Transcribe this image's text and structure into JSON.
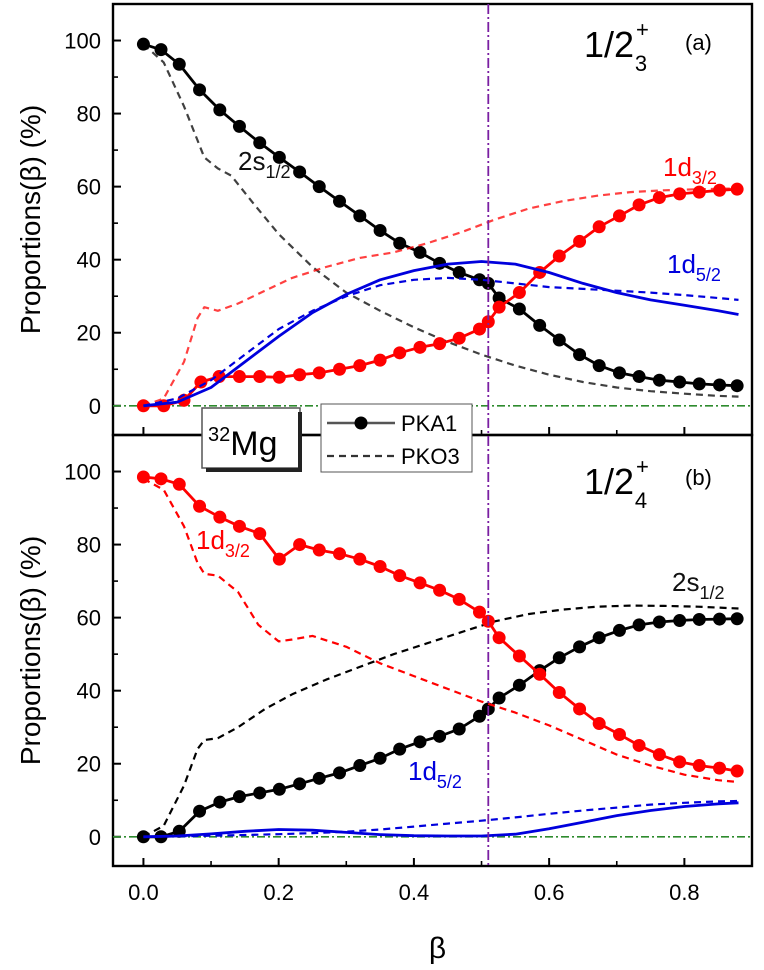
{
  "chart_data": {
    "type": "line",
    "x_axis": {
      "label": "β",
      "range": [
        -0.045,
        0.9
      ],
      "ticks": [
        "0.0",
        "0.2",
        "0.4",
        "0.6",
        "0.8"
      ]
    },
    "y_axis": {
      "label": "Proportions(β) (%)",
      "ticks": [
        "0",
        "20",
        "40",
        "60",
        "80",
        "100"
      ]
    },
    "legend": {
      "location": "center, between panels",
      "entries": [
        {
          "label": "PKA1",
          "style": "solid line with filled circles"
        },
        {
          "label": "PKO3",
          "style": "dashed line"
        }
      ]
    },
    "nucleus_label": {
      "mass": "32",
      "element": "Mg"
    },
    "reference_lines": {
      "vertical_beta": 0.51,
      "horizontal_y": 0
    },
    "colors": {
      "s12": "#000000",
      "d32": "#ff0000",
      "d52": "#0000dd",
      "vline": "#7a1fa2",
      "hline": "#2e8b2e"
    },
    "panels": [
      {
        "tag": "(a)",
        "state_main": "1/2",
        "state_sup": "+",
        "state_sub": "3",
        "ylim": [
          -8,
          110
        ],
        "series": [
          {
            "name": "2s1/2 PKA1",
            "key": "s12",
            "style": "solid-marker",
            "x": [
              0,
              0.026,
              0.053,
              0.083,
              0.113,
              0.142,
              0.172,
              0.201,
              0.231,
              0.26,
              0.29,
              0.32,
              0.35,
              0.379,
              0.409,
              0.438,
              0.467,
              0.497,
              0.51,
              0.526,
              0.556,
              0.586,
              0.615,
              0.645,
              0.674,
              0.704,
              0.733,
              0.763,
              0.793,
              0.822,
              0.852,
              0.878
            ],
            "y": [
              99,
              97.5,
              93.5,
              86.5,
              81,
              76.5,
              72,
              68,
              64,
              60,
              56,
              52,
              48,
              44.5,
              42,
              39,
              36.5,
              34.5,
              33.5,
              29.5,
              26.5,
              22,
              18,
              14,
              11,
              9,
              8,
              7,
              6.5,
              6,
              5.7,
              5.5
            ]
          },
          {
            "name": "2s1/2 PKO3",
            "key": "s12",
            "style": "dashed",
            "x": [
              0,
              0.03,
              0.06,
              0.09,
              0.11,
              0.13,
              0.16,
              0.2,
              0.25,
              0.3,
              0.35,
              0.4,
              0.45,
              0.5,
              0.55,
              0.6,
              0.65,
              0.7,
              0.75,
              0.8,
              0.85,
              0.88
            ],
            "y": [
              99,
              94,
              82,
              68,
              65,
              63,
              56,
              47,
              38,
              31,
              26,
              21.5,
              17.5,
              14,
              11,
              8.5,
              6.5,
              5,
              4,
              3.3,
              2.7,
              2.5
            ]
          },
          {
            "name": "1d3/2 PKA1",
            "key": "d32",
            "style": "solid-marker",
            "x": [
              0,
              0.03,
              0.06,
              0.085,
              0.112,
              0.142,
              0.172,
              0.201,
              0.231,
              0.26,
              0.29,
              0.32,
              0.35,
              0.379,
              0.409,
              0.438,
              0.467,
              0.497,
              0.51,
              0.526,
              0.556,
              0.586,
              0.615,
              0.645,
              0.674,
              0.704,
              0.733,
              0.763,
              0.793,
              0.822,
              0.852,
              0.878
            ],
            "y": [
              0,
              0,
              1.5,
              6.5,
              8,
              8,
              8,
              7.8,
              8.5,
              9,
              10,
              11,
              12.5,
              14.5,
              16,
              17,
              18.5,
              21,
              23,
              27,
              31,
              36.5,
              41,
              45,
              49,
              52,
              55,
              57,
              58,
              58.5,
              59,
              59.3
            ]
          },
          {
            "name": "1d3/2 PKO3",
            "key": "d32",
            "style": "dashed",
            "x": [
              0,
              0.03,
              0.06,
              0.08,
              0.09,
              0.11,
              0.14,
              0.18,
              0.22,
              0.27,
              0.32,
              0.37,
              0.42,
              0.47,
              0.52,
              0.57,
              0.62,
              0.67,
              0.72,
              0.77,
              0.82,
              0.88
            ],
            "y": [
              0,
              2,
              12,
              24,
              27,
              26,
              28,
              31.5,
              35,
              38,
              40.5,
              42,
              44.5,
              47.5,
              51,
              54,
              56,
              57.5,
              58.5,
              59,
              59.3,
              59.5
            ]
          },
          {
            "name": "1d5/2 PKA1",
            "key": "d52",
            "style": "solid",
            "x": [
              0,
              0.05,
              0.1,
              0.15,
              0.2,
              0.25,
              0.3,
              0.35,
              0.4,
              0.45,
              0.5,
              0.55,
              0.6,
              0.65,
              0.7,
              0.75,
              0.8,
              0.85,
              0.88
            ],
            "y": [
              0,
              1,
              5,
              12,
              19,
              25.5,
              30.5,
              34.5,
              37,
              38.8,
              39.5,
              38.8,
              36.5,
              33.5,
              31,
              29,
              27.5,
              26,
              25
            ]
          },
          {
            "name": "1d5/2 PKO3",
            "key": "d52",
            "style": "dashed",
            "x": [
              0,
              0.05,
              0.1,
              0.15,
              0.2,
              0.25,
              0.3,
              0.35,
              0.4,
              0.45,
              0.5,
              0.55,
              0.6,
              0.65,
              0.7,
              0.75,
              0.8,
              0.85,
              0.88
            ],
            "y": [
              0,
              2,
              7,
              14,
              21,
              26,
              30,
              33,
              34.5,
              35,
              34.5,
              33.5,
              32.5,
              32,
              31.5,
              31,
              30.3,
              29.5,
              29
            ]
          }
        ],
        "labels": [
          {
            "main": "2s",
            "sub": "1/2",
            "key": "s12"
          },
          {
            "main": "1d",
            "sub": "3/2",
            "key": "d32"
          },
          {
            "main": "1d",
            "sub": "5/2",
            "key": "d52"
          }
        ]
      },
      {
        "tag": "(b)",
        "state_main": "1/2",
        "state_sup": "+",
        "state_sub": "4",
        "ylim": [
          -8,
          110
        ],
        "series": [
          {
            "name": "2s1/2 PKA1",
            "key": "s12",
            "style": "solid-marker",
            "x": [
              0,
              0.026,
              0.053,
              0.083,
              0.113,
              0.142,
              0.172,
              0.201,
              0.231,
              0.26,
              0.29,
              0.32,
              0.35,
              0.379,
              0.409,
              0.438,
              0.467,
              0.497,
              0.51,
              0.526,
              0.556,
              0.586,
              0.615,
              0.645,
              0.674,
              0.704,
              0.733,
              0.763,
              0.793,
              0.822,
              0.852,
              0.878
            ],
            "y": [
              0,
              0,
              1.5,
              7,
              9.5,
              11,
              12,
              13,
              14.5,
              16,
              17.5,
              19.5,
              21.5,
              24,
              26,
              27.5,
              29.5,
              33,
              35,
              38,
              41.5,
              45.5,
              49,
              52,
              54.5,
              56.5,
              58,
              58.8,
              59.2,
              59.5,
              59.6,
              59.7
            ]
          },
          {
            "name": "2s1/2 PKO3",
            "key": "s12",
            "style": "dashed",
            "x": [
              0,
              0.03,
              0.06,
              0.08,
              0.09,
              0.11,
              0.14,
              0.18,
              0.22,
              0.27,
              0.32,
              0.37,
              0.42,
              0.47,
              0.52,
              0.57,
              0.62,
              0.67,
              0.72,
              0.77,
              0.82,
              0.88
            ],
            "y": [
              0,
              3,
              14,
              24,
              26.5,
              27,
              30,
              35,
              39,
              43,
              46.5,
              50,
              53,
              56,
              59,
              61,
              62.2,
              63,
              63.3,
              63.2,
              63,
              62.5
            ]
          },
          {
            "name": "1d3/2 PKA1",
            "key": "d32",
            "style": "solid-marker",
            "x": [
              0,
              0.026,
              0.053,
              0.083,
              0.113,
              0.142,
              0.172,
              0.201,
              0.231,
              0.26,
              0.29,
              0.32,
              0.35,
              0.379,
              0.409,
              0.438,
              0.467,
              0.497,
              0.51,
              0.526,
              0.556,
              0.586,
              0.615,
              0.645,
              0.674,
              0.704,
              0.733,
              0.763,
              0.793,
              0.822,
              0.852,
              0.878
            ],
            "y": [
              98.5,
              98,
              96.5,
              90.5,
              87.5,
              85,
              83,
              76,
              80,
              78.5,
              77.5,
              76,
              74,
              71.5,
              69.5,
              67.5,
              65,
              61.5,
              59,
              54.5,
              49.5,
              44.5,
              39.5,
              35,
              31,
              28,
              25,
              22.5,
              20.5,
              19.5,
              18.8,
              18
            ]
          },
          {
            "name": "1d3/2 PKO3",
            "key": "d32",
            "style": "dashed",
            "x": [
              0,
              0.03,
              0.06,
              0.08,
              0.09,
              0.11,
              0.14,
              0.17,
              0.2,
              0.22,
              0.25,
              0.3,
              0.35,
              0.4,
              0.45,
              0.5,
              0.55,
              0.6,
              0.65,
              0.7,
              0.75,
              0.8,
              0.85,
              0.88
            ],
            "y": [
              98,
              95,
              85,
              75,
              72,
              71.5,
              67,
              58,
              53.5,
              54,
              55,
              52,
              47.5,
              44,
              40.5,
              37,
              34,
              30.5,
              26.5,
              22.5,
              19.5,
              17,
              15.5,
              15
            ]
          },
          {
            "name": "1d5/2 PKA1",
            "key": "d52",
            "style": "solid",
            "x": [
              0,
              0.05,
              0.1,
              0.15,
              0.2,
              0.25,
              0.3,
              0.35,
              0.4,
              0.45,
              0.5,
              0.55,
              0.6,
              0.65,
              0.7,
              0.75,
              0.8,
              0.85,
              0.88
            ],
            "y": [
              0,
              0.2,
              0.8,
              1.5,
              2,
              1.8,
              1.2,
              0.6,
              0.3,
              0.2,
              0.2,
              0.7,
              2.2,
              4,
              5.8,
              7.2,
              8.3,
              9,
              9.3
            ]
          },
          {
            "name": "1d5/2 PKO3",
            "key": "d52",
            "style": "dashed",
            "x": [
              0,
              0.05,
              0.1,
              0.15,
              0.2,
              0.25,
              0.3,
              0.35,
              0.4,
              0.45,
              0.5,
              0.55,
              0.6,
              0.65,
              0.7,
              0.75,
              0.8,
              0.85,
              0.88
            ],
            "y": [
              0,
              0.1,
              0.3,
              0.5,
              0.7,
              1,
              1.4,
              2,
              2.8,
              3.6,
              4.4,
              5.3,
              6.3,
              7.2,
              8,
              8.8,
              9.3,
              9.7,
              9.8
            ]
          }
        ],
        "labels": [
          {
            "main": "1d",
            "sub": "3/2",
            "key": "d32"
          },
          {
            "main": "2s",
            "sub": "1/2",
            "key": "s12"
          },
          {
            "main": "1d",
            "sub": "5/2",
            "key": "d52"
          }
        ]
      }
    ]
  }
}
